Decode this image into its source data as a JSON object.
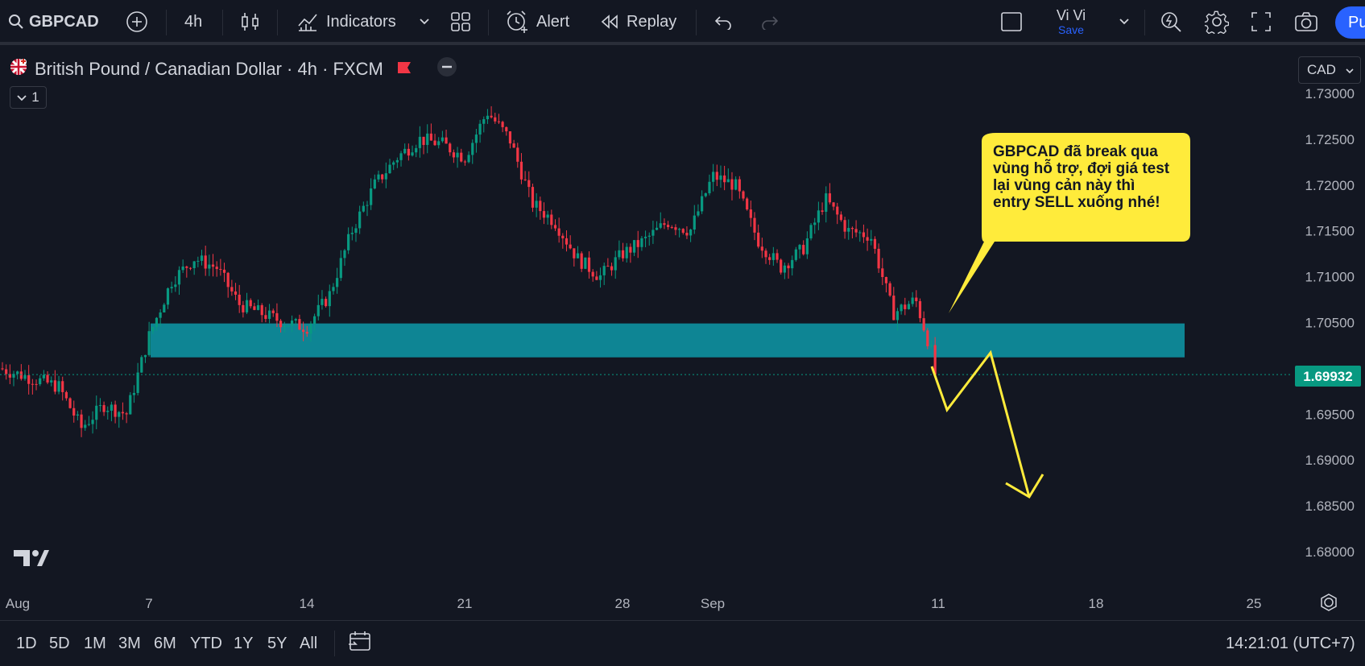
{
  "toolbar": {
    "symbol": "GBPCAD",
    "interval": "4h",
    "indicators_label": "Indicators",
    "alert_label": "Alert",
    "replay_label": "Replay",
    "user_name": "Vi Vi",
    "save_label": "Save",
    "publish_label": "Pu"
  },
  "legend": {
    "title": "British Pound / Canadian Dollar · 4h · FXCM",
    "collapse_count": "1"
  },
  "currency": "CAD",
  "price_label": "1.69932",
  "annotation": "GBPCAD đã break qua vùng hỗ trợ, đợi giá test lại vùng cản này thì entry SELL xuống nhé!",
  "bottom": {
    "ranges": [
      "1D",
      "5D",
      "1M",
      "3M",
      "6M",
      "YTD",
      "1Y",
      "5Y",
      "All"
    ],
    "clock": "14:21:01 (UTC+7)"
  },
  "colors": {
    "up": "#089981",
    "down": "#f23645",
    "zone": "#0e8594",
    "callout": "#ffeb3b",
    "arrow": "#ffeb3b",
    "accent": "#2962ff"
  },
  "chart_data": {
    "type": "candlestick",
    "title": "British Pound / Canadian Dollar · 4h · FXCM",
    "y_ticks": [
      "1.73000",
      "1.72500",
      "1.72000",
      "1.71500",
      "1.71000",
      "1.70500",
      "1.69500",
      "1.69000",
      "1.68500",
      "1.68000"
    ],
    "x_ticks": [
      "Aug",
      "7",
      "14",
      "21",
      "28",
      "Sep",
      "11",
      "18",
      "25"
    ],
    "ylim": [
      1.676,
      1.732
    ],
    "last_price": 1.69932,
    "zone": {
      "from": 1.7012,
      "to": 1.7049
    },
    "close_path": [
      {
        "date": "Aug 3",
        "price": 1.698
      },
      {
        "date": "Aug 4",
        "price": 1.6935
      },
      {
        "date": "Aug 5",
        "price": 1.696
      },
      {
        "date": "Aug 6",
        "price": 1.695
      },
      {
        "date": "Aug 7",
        "price": 1.7035
      },
      {
        "date": "Aug 8",
        "price": 1.7095
      },
      {
        "date": "Aug 9",
        "price": 1.712
      },
      {
        "date": "Aug 10",
        "price": 1.711
      },
      {
        "date": "Aug 11",
        "price": 1.707
      },
      {
        "date": "Aug 12",
        "price": 1.706
      },
      {
        "date": "Aug 13",
        "price": 1.705
      },
      {
        "date": "Aug 14",
        "price": 1.7045
      },
      {
        "date": "Aug 15",
        "price": 1.708
      },
      {
        "date": "Aug 16",
        "price": 1.715
      },
      {
        "date": "Aug 17",
        "price": 1.72
      },
      {
        "date": "Aug 18",
        "price": 1.723
      },
      {
        "date": "Aug 19",
        "price": 1.725
      },
      {
        "date": "Aug 20",
        "price": 1.7245
      },
      {
        "date": "Aug 21",
        "price": 1.723
      },
      {
        "date": "Aug 22",
        "price": 1.728
      },
      {
        "date": "Aug 23",
        "price": 1.725
      },
      {
        "date": "Aug 24",
        "price": 1.718
      },
      {
        "date": "Aug 25",
        "price": 1.716
      },
      {
        "date": "Aug 26",
        "price": 1.712
      },
      {
        "date": "Aug 27",
        "price": 1.71
      },
      {
        "date": "Aug 28",
        "price": 1.7125
      },
      {
        "date": "Aug 29",
        "price": 1.714
      },
      {
        "date": "Aug 30",
        "price": 1.716
      },
      {
        "date": "Aug 31",
        "price": 1.715
      },
      {
        "date": "Sep 1",
        "price": 1.721
      },
      {
        "date": "Sep 2",
        "price": 1.72
      },
      {
        "date": "Sep 3",
        "price": 1.714
      },
      {
        "date": "Sep 4",
        "price": 1.711
      },
      {
        "date": "Sep 5",
        "price": 1.713
      },
      {
        "date": "Sep 6",
        "price": 1.7185
      },
      {
        "date": "Sep 7",
        "price": 1.715
      },
      {
        "date": "Sep 8",
        "price": 1.7145
      },
      {
        "date": "Sep 9",
        "price": 1.706
      },
      {
        "date": "Sep 10",
        "price": 1.7075
      },
      {
        "date": "Sep 11",
        "price": 1.69932
      }
    ]
  }
}
